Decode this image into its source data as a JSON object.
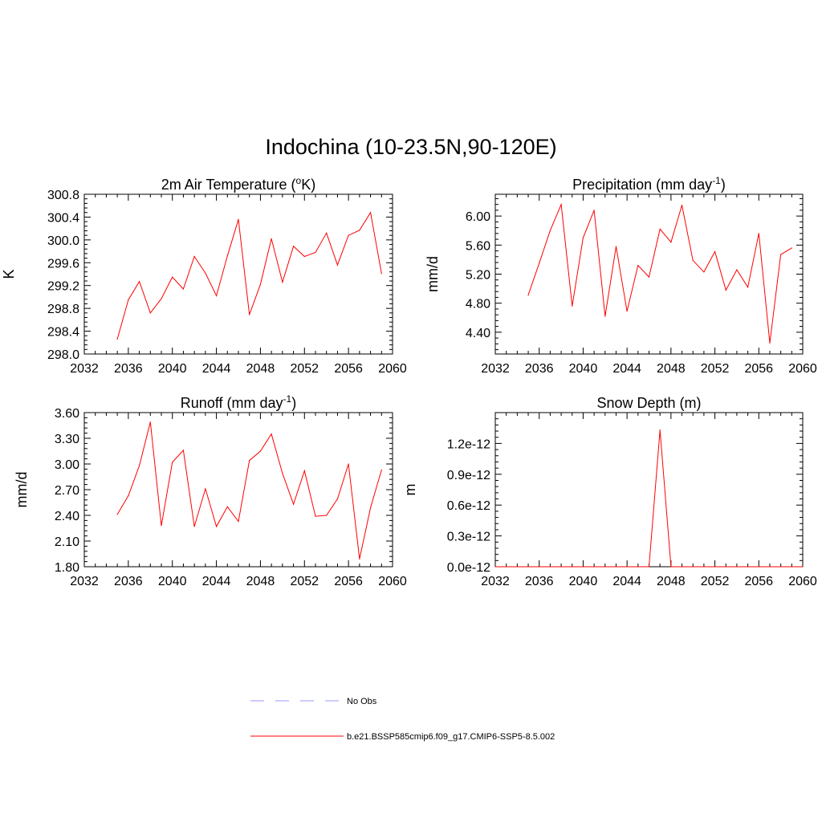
{
  "figure_title": "Indochina (10-23.5N,90-120E)",
  "colors": {
    "model_line": "#ff0000",
    "obs_line": "#9999ff",
    "axis": "#000000"
  },
  "legend": {
    "entries": [
      {
        "label": "No Obs",
        "style": "dashed",
        "color": "#9999ff"
      },
      {
        "label": "b.e21.BSSP585cmip6.f09_g17.CMIP6-SSP5-8.5.002",
        "style": "solid",
        "color": "#ff0000"
      }
    ]
  },
  "chart_data": [
    {
      "type": "line",
      "title": "2m Air Temperature (",
      "title_sup": "o",
      "title_after": "K)",
      "ylabel": "K",
      "xlim": [
        2032,
        2060
      ],
      "ylim": [
        298.0,
        300.8
      ],
      "xticks": [
        "2032",
        "2036",
        "2040",
        "2044",
        "2048",
        "2052",
        "2056",
        "2060"
      ],
      "yticks": [
        "298.0",
        "298.4",
        "298.8",
        "299.2",
        "299.6",
        "300.0",
        "300.4",
        "300.8"
      ],
      "x": [
        2035,
        2036,
        2037,
        2038,
        2039,
        2040,
        2041,
        2042,
        2043,
        2044,
        2045,
        2046,
        2047,
        2048,
        2049,
        2050,
        2051,
        2052,
        2053,
        2054,
        2055,
        2056,
        2057,
        2058,
        2059
      ],
      "values": [
        298.26,
        298.95,
        299.27,
        298.72,
        298.97,
        299.35,
        299.14,
        299.71,
        299.42,
        299.02,
        299.72,
        300.36,
        298.69,
        299.22,
        300.02,
        299.26,
        299.89,
        299.71,
        299.78,
        300.12,
        299.56,
        300.08,
        300.17,
        300.48,
        299.41
      ]
    },
    {
      "type": "line",
      "title": "Precipitation (mm day",
      "title_sup": "-1",
      "title_after": ")",
      "ylabel": "mm/d",
      "xlim": [
        2032,
        2060
      ],
      "ylim": [
        4.1,
        6.3
      ],
      "xticks": [
        "2032",
        "2036",
        "2040",
        "2044",
        "2048",
        "2052",
        "2056",
        "2060"
      ],
      "yticks": [
        "4.40",
        "4.80",
        "5.20",
        "5.60",
        "6.00"
      ],
      "x": [
        2035,
        2036,
        2037,
        2038,
        2039,
        2040,
        2041,
        2042,
        2043,
        2044,
        2045,
        2046,
        2047,
        2048,
        2049,
        2050,
        2051,
        2052,
        2053,
        2054,
        2055,
        2056,
        2057,
        2058,
        2059
      ],
      "values": [
        4.91,
        5.35,
        5.8,
        6.16,
        4.76,
        5.7,
        6.08,
        4.62,
        5.58,
        4.69,
        5.32,
        5.16,
        5.82,
        5.64,
        6.15,
        5.39,
        5.23,
        5.51,
        4.98,
        5.26,
        5.02,
        5.76,
        4.25,
        5.47,
        5.56
      ]
    },
    {
      "type": "line",
      "title": "Runoff (mm day",
      "title_sup": "-1",
      "title_after": ")",
      "ylabel": "mm/d",
      "xlim": [
        2032,
        2060
      ],
      "ylim": [
        1.8,
        3.6
      ],
      "xticks": [
        "2032",
        "2036",
        "2040",
        "2044",
        "2048",
        "2052",
        "2056",
        "2060"
      ],
      "yticks": [
        "1.80",
        "2.10",
        "2.40",
        "2.70",
        "3.00",
        "3.30",
        "3.60"
      ],
      "x": [
        2035,
        2036,
        2037,
        2038,
        2039,
        2040,
        2041,
        2042,
        2043,
        2044,
        2045,
        2046,
        2047,
        2048,
        2049,
        2050,
        2051,
        2052,
        2053,
        2054,
        2055,
        2056,
        2057,
        2058,
        2059
      ],
      "values": [
        2.41,
        2.63,
        2.98,
        3.49,
        2.28,
        3.02,
        3.16,
        2.27,
        2.71,
        2.27,
        2.5,
        2.33,
        3.04,
        3.15,
        3.35,
        2.89,
        2.53,
        2.92,
        2.39,
        2.4,
        2.59,
        3.0,
        1.89,
        2.49,
        2.93
      ]
    },
    {
      "type": "line",
      "title": "Snow Depth (m)",
      "title_sup": "",
      "title_after": "",
      "ylabel": "m",
      "xlim": [
        2032,
        2060
      ],
      "ylim": [
        0,
        1.5e-12
      ],
      "xticks": [
        "2032",
        "2036",
        "2040",
        "2044",
        "2048",
        "2052",
        "2056",
        "2060"
      ],
      "yticks": [
        "0.0e-12",
        "0.3e-12",
        "0.6e-12",
        "0.9e-12",
        "1.2e-12"
      ],
      "x": [
        2032,
        2033,
        2034,
        2035,
        2036,
        2037,
        2038,
        2039,
        2040,
        2041,
        2042,
        2043,
        2044,
        2045,
        2046,
        2047,
        2048,
        2049,
        2050,
        2051,
        2052,
        2053,
        2054,
        2055,
        2056,
        2057,
        2058,
        2059,
        2060
      ],
      "values": [
        0,
        0,
        0,
        0,
        0,
        0,
        0,
        0,
        0,
        0,
        0,
        0,
        0,
        0,
        0,
        1.33e-12,
        0,
        0,
        0,
        0,
        0,
        0,
        0,
        0,
        0,
        0,
        0,
        0,
        0
      ]
    }
  ]
}
